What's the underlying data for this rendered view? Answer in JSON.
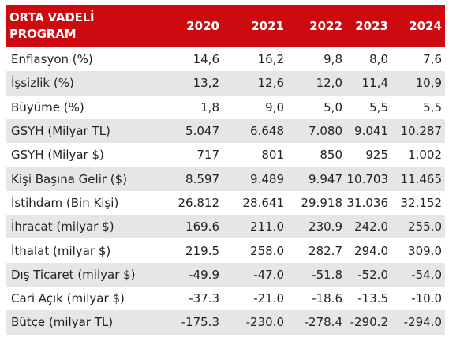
{
  "table": {
    "header": {
      "label_line1": "ORTA VADELİ",
      "label_line2": "PROGRAM",
      "years": [
        "2020",
        "2021",
        "2022",
        "2023",
        "2024"
      ]
    },
    "rows": [
      {
        "label": "Enflasyon (%)",
        "values": [
          "14,6",
          "16,2",
          "9,8",
          "8,0",
          "7,6"
        ]
      },
      {
        "label": "İşsizlik (%)",
        "values": [
          "13,2",
          "12,6",
          "12,0",
          "11,4",
          "10,9"
        ]
      },
      {
        "label": "Büyüme (%)",
        "values": [
          "1,8",
          "9,0",
          "5,0",
          "5,5",
          "5,5"
        ]
      },
      {
        "label": "GSYH (Milyar TL)",
        "values": [
          "5.047",
          "6.648",
          "7.080",
          "9.041",
          "10.287"
        ]
      },
      {
        "label": "GSYH (Milyar $)",
        "values": [
          "717",
          "801",
          "850",
          "925",
          "1.002"
        ]
      },
      {
        "label": "Kişi Başına Gelir ($)",
        "values": [
          "8.597",
          "9.489",
          "9.947",
          "10.703",
          "11.465"
        ]
      },
      {
        "label": "İstihdam (Bin Kişi)",
        "values": [
          "26.812",
          "28.641",
          "29.918",
          "31.036",
          "32.152"
        ]
      },
      {
        "label": "İhracat (milyar $)",
        "values": [
          "169.6",
          "211.0",
          "230.9",
          "242.0",
          "255.0"
        ]
      },
      {
        "label": "İthalat (milyar $)",
        "values": [
          "219.5",
          "258.0",
          "282.7",
          "294.0",
          "309.0"
        ]
      },
      {
        "label": "Dış Ticaret (milyar $)",
        "values": [
          "-49.9",
          "-47.0",
          "-51.8",
          "-52.0",
          "-54.0"
        ]
      },
      {
        "label": "Cari Açık (milyar $)",
        "values": [
          "-37.3",
          "-21.0",
          "-18.6",
          "-13.5",
          "-10.0"
        ]
      },
      {
        "label": "Bütçe (milyar TL)",
        "values": [
          "-175.3",
          "-230.0",
          "-278.4",
          "-290.2",
          "-294.0"
        ]
      }
    ],
    "colors": {
      "header_bg": "#cc0a0f",
      "header_text": "#ffffff",
      "stripe": "#e6e6e6"
    }
  }
}
